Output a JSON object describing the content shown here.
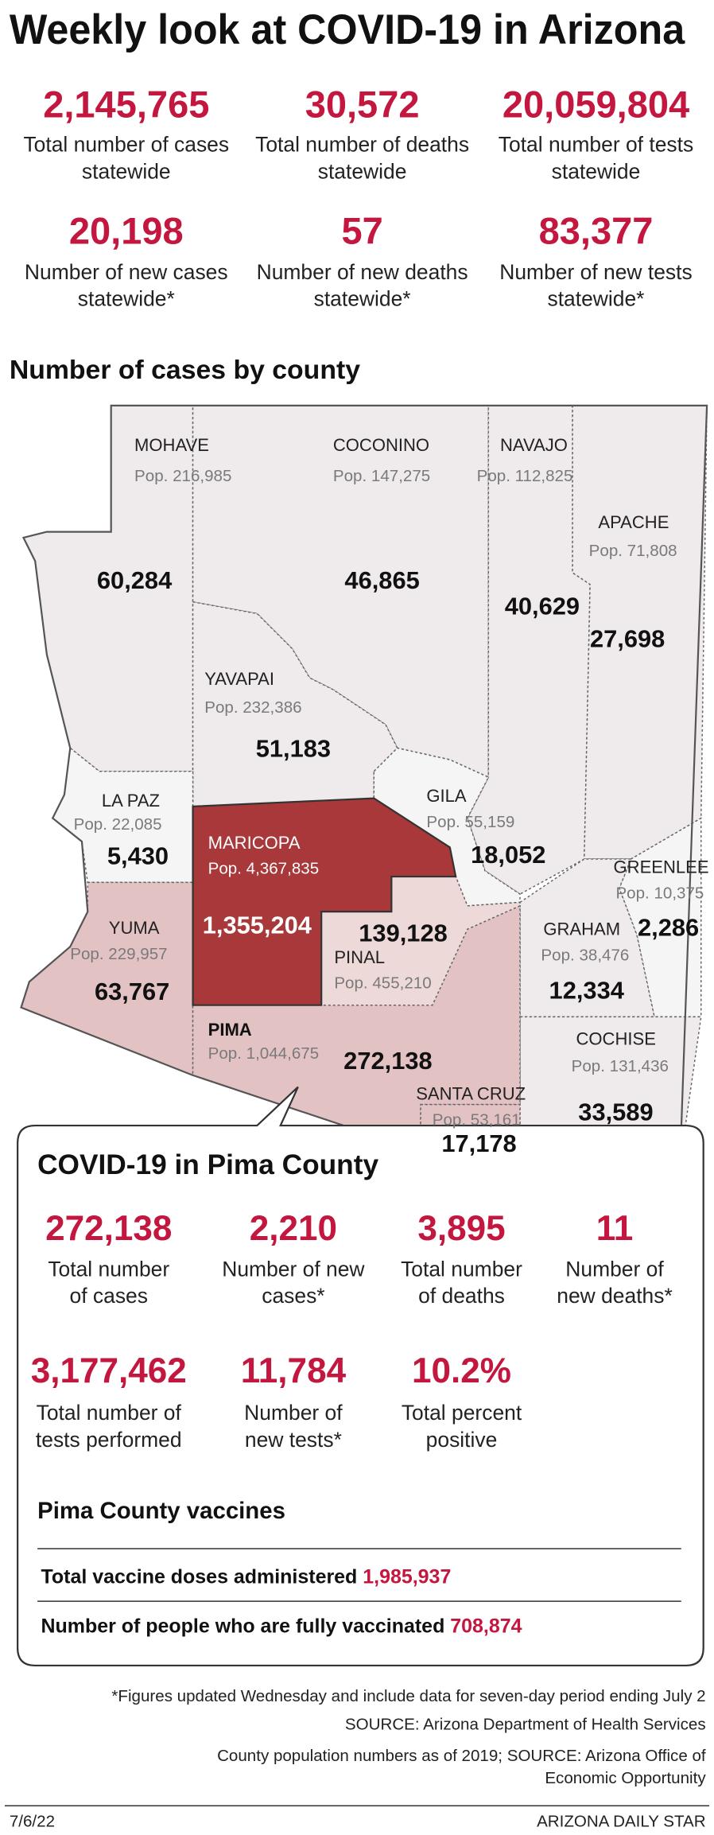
{
  "title": "Weekly look at COVID-19 in Arizona",
  "statewide": [
    {
      "value": "2,145,765",
      "label": [
        "Total number of cases",
        "statewide"
      ]
    },
    {
      "value": "30,572",
      "label": [
        "Total number of deaths",
        "statewide"
      ]
    },
    {
      "value": "20,059,804",
      "label": [
        "Total number of tests",
        "statewide"
      ]
    },
    {
      "value": "20,198",
      "label": [
        "Number of new cases",
        "statewide*"
      ]
    },
    {
      "value": "57",
      "label": [
        "Number of new deaths",
        "statewide*"
      ]
    },
    {
      "value": "83,377",
      "label": [
        "Number of new tests",
        "statewide*"
      ]
    }
  ],
  "map_title": "Number of cases by county",
  "counties": [
    {
      "name": "MOHAVE",
      "pop": "Pop. 216,985",
      "cases": "60,284"
    },
    {
      "name": "COCONINO",
      "pop": "Pop. 147,275",
      "cases": "46,865"
    },
    {
      "name": "NAVAJO",
      "pop": "Pop. 112,825",
      "cases": "40,629"
    },
    {
      "name": "APACHE",
      "pop": "Pop. 71,808",
      "cases": "27,698"
    },
    {
      "name": "YAVAPAI",
      "pop": "Pop. 232,386",
      "cases": "51,183"
    },
    {
      "name": "LA PAZ",
      "pop": "Pop. 22,085",
      "cases": "5,430"
    },
    {
      "name": "GILA",
      "pop": "Pop. 55,159",
      "cases": "18,052"
    },
    {
      "name": "MARICOPA",
      "pop": "Pop. 4,367,835",
      "cases": "1,355,204"
    },
    {
      "name": "GREENLEE",
      "pop": "Pop. 10,375",
      "cases": "2,286"
    },
    {
      "name": "YUMA",
      "pop": "Pop. 229,957",
      "cases": "63,767"
    },
    {
      "name": "PINAL",
      "pop": "Pop. 455,210",
      "cases": "139,128"
    },
    {
      "name": "GRAHAM",
      "pop": "Pop. 38,476",
      "cases": "12,334"
    },
    {
      "name": "COCHISE",
      "pop": "Pop. 131,436",
      "cases": "33,589"
    },
    {
      "name": "PIMA",
      "pop": "Pop. 1,044,675",
      "cases": "272,138"
    },
    {
      "name": "SANTA CRUZ",
      "pop": "Pop. 53,161",
      "cases": "17,178"
    }
  ],
  "pima": {
    "title": "COVID-19 in Pima County",
    "stats": [
      {
        "value": "272,138",
        "label": [
          "Total number",
          "of cases"
        ]
      },
      {
        "value": "2,210",
        "label": [
          "Number of new",
          "cases*"
        ]
      },
      {
        "value": "3,895",
        "label": [
          "Total number",
          "of deaths"
        ]
      },
      {
        "value": "11",
        "label": [
          "Number of",
          "new deaths*"
        ]
      },
      {
        "value": "3,177,462",
        "label": [
          "Total number of",
          "tests performed"
        ]
      },
      {
        "value": "11,784",
        "label": [
          "Number of",
          "new tests*"
        ]
      },
      {
        "value": "10.2%",
        "label": [
          "Total percent",
          "positive"
        ]
      }
    ],
    "vaccines_title": "Pima County vaccines",
    "vaccines": [
      {
        "label": "Total vaccine doses administered",
        "value": "1,985,937"
      },
      {
        "label": "Number of people who are fully vaccinated",
        "value": "708,874"
      }
    ]
  },
  "footnotes": [
    [
      "*Figures updated Wednesday and include data for seven-day period ending July 2"
    ],
    [
      "SOURCE: Arizona Department of Health Services"
    ],
    [
      "County population numbers as of 2019; SOURCE: Arizona Office of",
      "Economic Opportunity"
    ]
  ],
  "date": "7/6/22",
  "credit": "ARIZONA DAILY STAR"
}
